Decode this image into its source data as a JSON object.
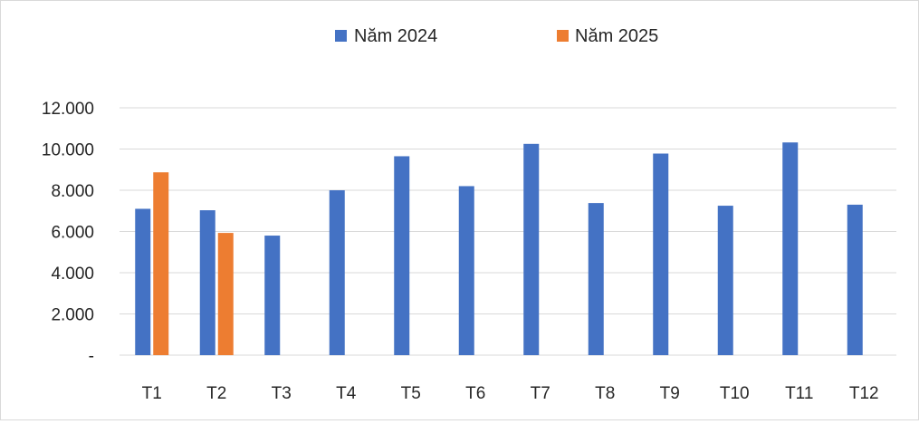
{
  "chart_data": {
    "type": "bar",
    "title": "",
    "xlabel": "",
    "ylabel": "",
    "categories": [
      "T1",
      "T2",
      "T3",
      "T4",
      "T5",
      "T6",
      "T7",
      "T8",
      "T9",
      "T10",
      "T11",
      "T12"
    ],
    "series": [
      {
        "name": "Năm 2024",
        "color": "#4472c4",
        "values": [
          7100,
          7030,
          5800,
          8000,
          9650,
          8200,
          10250,
          7380,
          9780,
          7250,
          10320,
          7300
        ]
      },
      {
        "name": "Năm 2025",
        "color": "#ed7d31",
        "values": [
          8870,
          5930,
          null,
          null,
          null,
          null,
          null,
          null,
          null,
          null,
          null,
          null
        ]
      }
    ],
    "ylim": [
      0,
      12000
    ],
    "yticks": [
      0,
      2000,
      4000,
      6000,
      8000,
      10000,
      12000
    ],
    "ytick_labels": [
      "-",
      "2.000",
      "4.000",
      "6.000",
      "8.000",
      "10.000",
      "12.000"
    ],
    "grid": true,
    "legend_position": "top-center"
  }
}
